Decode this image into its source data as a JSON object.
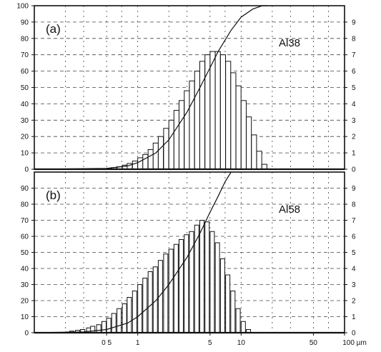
{
  "chart_data": [
    {
      "type": "bar",
      "panel_label": "(a)",
      "sample_label": "Al38",
      "x_tick_labels": [],
      "x_scale": "log",
      "xlim": [
        0.1,
        100
      ],
      "y_left_ticks": [
        "0",
        "10",
        "20",
        "30",
        "40",
        "50",
        "60",
        "70",
        "80",
        "90",
        "100"
      ],
      "y_left_lim": [
        0,
        100
      ],
      "y_right_ticks": [
        "0",
        "1",
        "2",
        "3",
        "4",
        "5",
        "6",
        "7",
        "8",
        "9"
      ],
      "y_right_lim": [
        0,
        10
      ],
      "grid": true,
      "bins_x": [
        0.5,
        0.56,
        0.63,
        0.71,
        0.79,
        0.89,
        1.0,
        1.12,
        1.26,
        1.41,
        1.58,
        1.78,
        2.0,
        2.24,
        2.51,
        2.82,
        3.16,
        3.55,
        3.98,
        4.47,
        5.01,
        5.62,
        6.31,
        7.08,
        7.94,
        8.91,
        10.0,
        11.22,
        12.59,
        14.13,
        15.85
      ],
      "bar_values": [
        0.05,
        0.1,
        0.15,
        0.25,
        0.35,
        0.5,
        0.7,
        0.9,
        1.2,
        1.6,
        2.0,
        2.5,
        3.0,
        3.6,
        4.2,
        4.8,
        5.4,
        6.0,
        6.6,
        7.0,
        7.2,
        7.2,
        7.0,
        6.6,
        5.9,
        5.1,
        4.2,
        3.2,
        2.1,
        1.1,
        0.3
      ],
      "cumulative_x": [
        0.1,
        0.5,
        0.8,
        1.0,
        1.5,
        2.0,
        3.0,
        4.0,
        5.0,
        6.0,
        8.0,
        10.0,
        13.0,
        16.0,
        18.0
      ],
      "cumulative_y": [
        0,
        0.5,
        2,
        4,
        10,
        18,
        35,
        50,
        62,
        72,
        85,
        93,
        98,
        100,
        100
      ]
    },
    {
      "type": "bar",
      "panel_label": "(b)",
      "sample_label": "Al58",
      "x_tick_labels": [
        "0 5",
        "1",
        "5",
        "10",
        "50",
        "100 µm"
      ],
      "x_tick_values": [
        0.5,
        1,
        5,
        10,
        50,
        100
      ],
      "x_scale": "log",
      "xlim": [
        0.1,
        100
      ],
      "y_left_ticks": [
        "0",
        "10",
        "20",
        "30",
        "40",
        "50",
        "60",
        "70",
        "80",
        "90"
      ],
      "y_left_lim": [
        0,
        100
      ],
      "y_right_ticks": [
        "0",
        "1",
        "2",
        "3",
        "4",
        "5",
        "6",
        "7",
        "8",
        "9"
      ],
      "y_right_lim": [
        0,
        10
      ],
      "grid": true,
      "bins_x": [
        0.2,
        0.22,
        0.25,
        0.28,
        0.32,
        0.35,
        0.4,
        0.45,
        0.5,
        0.56,
        0.63,
        0.71,
        0.79,
        0.89,
        1.0,
        1.12,
        1.26,
        1.41,
        1.58,
        1.78,
        2.0,
        2.24,
        2.51,
        2.82,
        3.16,
        3.55,
        3.98,
        4.47,
        5.01,
        5.62,
        6.31,
        7.08,
        7.94,
        8.91,
        10.0,
        11.22
      ],
      "bar_values": [
        0.05,
        0.1,
        0.15,
        0.2,
        0.3,
        0.4,
        0.5,
        0.7,
        0.9,
        1.2,
        1.5,
        1.8,
        2.2,
        2.6,
        3.0,
        3.4,
        3.8,
        4.1,
        4.5,
        4.9,
        5.2,
        5.5,
        5.8,
        6.1,
        6.3,
        6.7,
        7.0,
        6.9,
        6.3,
        5.6,
        4.6,
        3.6,
        2.6,
        1.5,
        0.7,
        0.2
      ],
      "cumulative_x": [
        0.1,
        0.3,
        0.5,
        0.8,
        1.0,
        1.5,
        2.0,
        3.0,
        4.0,
        5.0,
        6.0,
        7.0,
        8.0
      ],
      "cumulative_y": [
        0,
        0.5,
        2,
        6,
        10,
        20,
        30,
        47,
        62,
        75,
        85,
        94,
        100
      ]
    }
  ]
}
